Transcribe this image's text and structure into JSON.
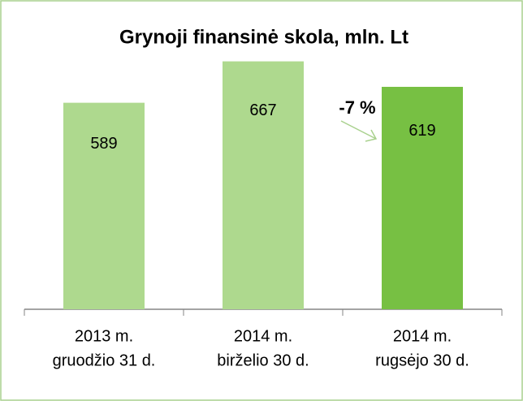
{
  "chart_data": {
    "type": "bar",
    "title": "Grynoji finansinė skola, mln. Lt",
    "categories": [
      [
        "2013 m.",
        "gruodžio 31 d."
      ],
      [
        "2014 m.",
        "birželio 30 d."
      ],
      [
        "2014 m.",
        "rugsėjo 30 d."
      ]
    ],
    "values": [
      589,
      667,
      619
    ],
    "colors": [
      "#aed98e",
      "#aed98e",
      "#77c043"
    ],
    "ylim": [
      200,
      700
    ],
    "annotation": "-7 %"
  }
}
